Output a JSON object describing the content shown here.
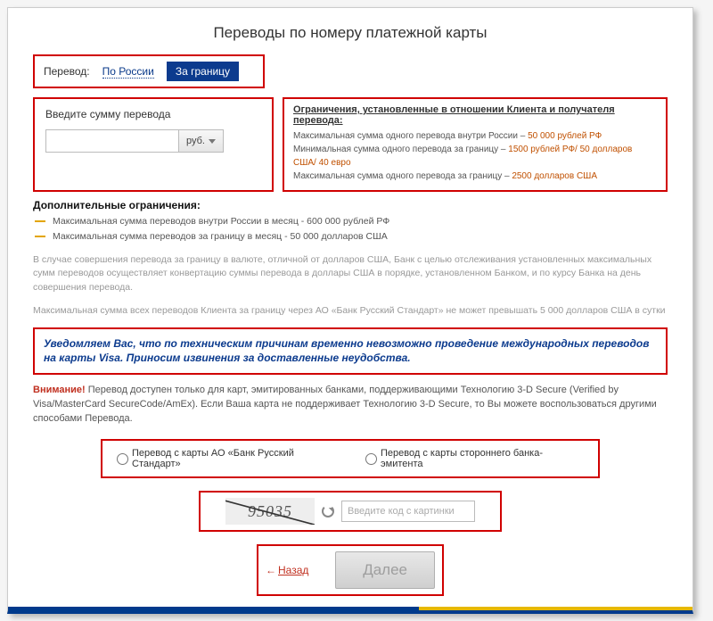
{
  "title": "Переводы по номеру платежной карты",
  "tabs": {
    "label": "Перевод:",
    "domestic": "По России",
    "abroad": "За границу"
  },
  "amount": {
    "label": "Введите сумму перевода",
    "currency": "руб."
  },
  "limits": {
    "title": "Ограничения, установленные в отношении Клиента и получателя перевода:",
    "l1_text": "Максимальная сумма одного перевода внутри России – ",
    "l1_val": "50 000 рублей РФ",
    "l2_text": "Минимальная сумма одного перевода за границу – ",
    "l2_val": "1500 рублей РФ/ 50 долларов США/ 40 евро",
    "l3_text": "Максимальная сумма одного перевода за границу – ",
    "l3_val": "2500 долларов США"
  },
  "extra": {
    "title": "Дополнительные ограничения:",
    "l1": "Максимальная сумма переводов внутри России в месяц - 600 000 рублей РФ",
    "l2": "Максимальная сумма переводов за границу в месяц - 50 000 долларов США"
  },
  "para1": "В случае совершения перевода за границу в валюте, отличной от долларов США, Банк с целью отслеживания установленных максимальных сумм переводов осуществляет конвертацию суммы перевода в доллары США в порядке, установленном Банком, и по курсу Банка на день совершения перевода.",
  "para2": "Максимальная сумма всех переводов Клиента за границу через АО «Банк Русский Стандарт» не может превышать 5 000 долларов США в сутки",
  "notice": "Уведомляем Вас, что по техническим причинам временно невозможно проведение международных переводов на карты Visa. Приносим извинения за доставленные неудобства.",
  "warn": {
    "prefix": "Внимание!",
    "body": " Перевод доступен только для карт, эмитированных банками, поддерживающими Технологию 3-D Secure (Verified by Visa/MasterCard SecureCode/AmEx). Если Ваша карта не поддерживает Технологию 3-D Secure, то Вы можете воспользоваться другими способами Перевода."
  },
  "radio": {
    "own": "Перевод с карты АО «Банк Русский Стандарт»",
    "other": "Перевод с карты стороннего банка-эмитента"
  },
  "captcha": {
    "text": "95035",
    "placeholder": "Введите код с картинки"
  },
  "actions": {
    "back": "Назад",
    "next": "Далее"
  },
  "colors": {
    "brand": "#0c3b8e",
    "highlight": "#d00000",
    "orange": "#c05000"
  }
}
